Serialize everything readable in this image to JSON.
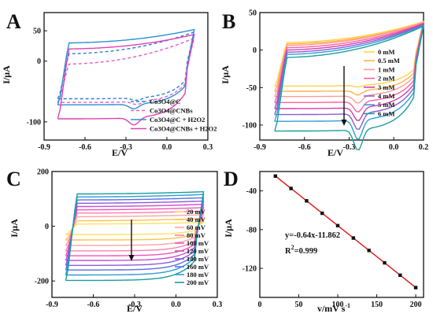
{
  "chart_data": [
    {
      "panel": "A",
      "type": "line",
      "xlabel": "E/V",
      "ylabel": "I/μA",
      "xlim": [
        -0.9,
        0.3
      ],
      "ylim": [
        -130,
        80
      ],
      "xticks": [
        "-0.9",
        "-0.6",
        "-0.3",
        "0.0",
        "0.3"
      ],
      "yticks": [
        "-100",
        "0",
        "50"
      ],
      "xtick_values": [
        -0.9,
        -0.6,
        -0.3,
        0.0,
        0.3
      ],
      "ytick_values": [
        -100,
        0,
        50
      ],
      "legend_position": "bottom-right",
      "series": [
        {
          "name": "Co3O4@C",
          "color": "#2e7fd0",
          "dash": true,
          "cv": {
            "e1": -0.8,
            "e2": 0.2,
            "topStart": 12,
            "topEnd": 48,
            "botStart": -62,
            "botEnd": -10,
            "peakE": -0.22,
            "peakI": -4,
            "peakW": 0.05
          }
        },
        {
          "name": "Co3O4@CNBs",
          "color": "#e85ac8",
          "dash": true,
          "cv": {
            "e1": -0.8,
            "e2": 0.2,
            "topStart": -5,
            "topEnd": 38,
            "botStart": -68,
            "botEnd": -15,
            "peakE": -0.22,
            "peakI": -5,
            "peakW": 0.05
          }
        },
        {
          "name": "Co3O4@C + H2O2",
          "color": "#2a8fd6",
          "dash": false,
          "cv": {
            "e1": -0.8,
            "e2": 0.2,
            "topStart": 30,
            "topEnd": 52,
            "botStart": -72,
            "botEnd": -18,
            "peakE": -0.24,
            "peakI": -8,
            "peakW": 0.05
          }
        },
        {
          "name": "Co3O4@CNBs + H2O2",
          "color": "#e041b4",
          "dash": false,
          "cv": {
            "e1": -0.8,
            "e2": 0.2,
            "topStart": 20,
            "topEnd": 44,
            "botStart": -95,
            "botEnd": -22,
            "peakE": -0.24,
            "peakI": -12,
            "peakW": 0.05
          }
        }
      ]
    },
    {
      "panel": "B",
      "type": "line",
      "xlabel": "E/V",
      "ylabel": "I/μA",
      "xlim": [
        -0.9,
        0.2
      ],
      "ylim": [
        -120,
        50
      ],
      "xticks": [
        "-0.9",
        "-0.6",
        "-0.3",
        "0.0",
        "0.2"
      ],
      "yticks": [
        "50",
        "0",
        "-50",
        "-100"
      ],
      "xtick_values": [
        -0.9,
        -0.6,
        -0.3,
        0.0,
        0.2
      ],
      "ytick_values": [
        50,
        0,
        -50,
        -100
      ],
      "legend_position": "right",
      "series": [
        {
          "name": "0 mM",
          "color": "#ffd24d",
          "cv": {
            "e1": -0.8,
            "e2": 0.2,
            "topStart": 10,
            "topEnd": 38,
            "botStart": -48,
            "botEnd": -10,
            "peakE": -0.24,
            "peakI": -2,
            "peakW": 0.04
          }
        },
        {
          "name": "0.5 mM",
          "color": "#ffb347",
          "cv": {
            "e1": -0.8,
            "e2": 0.2,
            "topStart": 8,
            "topEnd": 37,
            "botStart": -55,
            "botEnd": -13,
            "peakE": -0.24,
            "peakI": -6,
            "peakW": 0.04
          }
        },
        {
          "name": "1 mM",
          "color": "#ff9a9a",
          "cv": {
            "e1": -0.8,
            "e2": 0.2,
            "topStart": 6,
            "topEnd": 37,
            "botStart": -62,
            "botEnd": -16,
            "peakE": -0.24,
            "peakI": -10,
            "peakW": 0.04
          }
        },
        {
          "name": "2 mM",
          "color": "#ff5fa2",
          "cv": {
            "e1": -0.8,
            "e2": 0.2,
            "topStart": 3,
            "topEnd": 36,
            "botStart": -70,
            "botEnd": -19,
            "peakE": -0.24,
            "peakI": -14,
            "peakW": 0.04
          }
        },
        {
          "name": "3 mM",
          "color": "#d43fa8",
          "cv": {
            "e1": -0.8,
            "e2": 0.2,
            "topStart": 0,
            "topEnd": 35,
            "botStart": -78,
            "botEnd": -22,
            "peakE": -0.24,
            "peakI": -18,
            "peakW": 0.04
          }
        },
        {
          "name": "4 mM",
          "color": "#8a5cd6",
          "cv": {
            "e1": -0.8,
            "e2": 0.2,
            "topStart": -3,
            "topEnd": 34,
            "botStart": -86,
            "botEnd": -25,
            "peakE": -0.24,
            "peakI": -22,
            "peakW": 0.04
          }
        },
        {
          "name": "5 mM",
          "color": "#2f9fd6",
          "cv": {
            "e1": -0.8,
            "e2": 0.2,
            "topStart": -6,
            "topEnd": 33,
            "botStart": -95,
            "botEnd": -28,
            "peakE": -0.24,
            "peakI": -26,
            "peakW": 0.04
          }
        },
        {
          "name": "6 mM",
          "color": "#1e9e9e",
          "cv": {
            "e1": -0.8,
            "e2": 0.2,
            "topStart": -10,
            "topEnd": 32,
            "botStart": -108,
            "botEnd": -30,
            "peakE": -0.24,
            "peakI": -28,
            "peakW": 0.04
          }
        }
      ]
    },
    {
      "panel": "C",
      "type": "line",
      "xlabel": "E/V",
      "ylabel": "I/μA",
      "xlim": [
        -0.9,
        0.3
      ],
      "ylim": [
        -260,
        200
      ],
      "xticks": [
        "-0.9",
        "-0.6",
        "-0.3",
        "0.0",
        "0.3"
      ],
      "yticks": [
        "200",
        "0",
        "-200"
      ],
      "xtick_values": [
        -0.9,
        -0.6,
        -0.3,
        0.0,
        0.3
      ],
      "ytick_values": [
        200,
        0,
        -200
      ],
      "legend_position": "right",
      "series": [
        {
          "name": "20 mV",
          "color": "#ffe066",
          "cv": {
            "e1": -0.8,
            "e2": 0.2,
            "topStart": 8,
            "topEnd": 14,
            "botStart": -30,
            "botEnd": -5,
            "peakE": -0.25,
            "peakI": 0,
            "peakW": 0.05
          }
        },
        {
          "name": "40 mV",
          "color": "#ffc24d",
          "cv": {
            "e1": -0.8,
            "e2": 0.2,
            "topStart": 20,
            "topEnd": 28,
            "botStart": -50,
            "botEnd": -12,
            "peakE": -0.25,
            "peakI": 0,
            "peakW": 0.05
          }
        },
        {
          "name": "60 mV",
          "color": "#ffa3a3",
          "cv": {
            "e1": -0.8,
            "e2": 0.2,
            "topStart": 35,
            "topEnd": 42,
            "botStart": -70,
            "botEnd": -20,
            "peakE": -0.25,
            "peakI": 0,
            "peakW": 0.05
          }
        },
        {
          "name": "80 mV",
          "color": "#ff7fae",
          "cv": {
            "e1": -0.8,
            "e2": 0.2,
            "topStart": 48,
            "topEnd": 55,
            "botStart": -90,
            "botEnd": -28,
            "peakE": -0.25,
            "peakI": 0,
            "peakW": 0.05
          }
        },
        {
          "name": "100 mV",
          "color": "#f056b8",
          "cv": {
            "e1": -0.8,
            "e2": 0.2,
            "topStart": 60,
            "topEnd": 68,
            "botStart": -108,
            "botEnd": -36,
            "peakE": -0.25,
            "peakI": 0,
            "peakW": 0.05
          }
        },
        {
          "name": "120 mV",
          "color": "#c84fd0",
          "cv": {
            "e1": -0.8,
            "e2": 0.2,
            "topStart": 72,
            "topEnd": 80,
            "botStart": -125,
            "botEnd": -44,
            "peakE": -0.25,
            "peakI": 0,
            "peakW": 0.05
          }
        },
        {
          "name": "140 mV",
          "color": "#8c5bd8",
          "cv": {
            "e1": -0.8,
            "e2": 0.2,
            "topStart": 84,
            "topEnd": 92,
            "botStart": -143,
            "botEnd": -52,
            "peakE": -0.25,
            "peakI": 0,
            "peakW": 0.05
          }
        },
        {
          "name": "160 mV",
          "color": "#5a6fe0",
          "cv": {
            "e1": -0.8,
            "e2": 0.2,
            "topStart": 96,
            "topEnd": 104,
            "botStart": -160,
            "botEnd": -60,
            "peakE": -0.25,
            "peakI": 0,
            "peakW": 0.05
          }
        },
        {
          "name": "180 mV",
          "color": "#2e9ad6",
          "cv": {
            "e1": -0.8,
            "e2": 0.2,
            "topStart": 107,
            "topEnd": 116,
            "botStart": -178,
            "botEnd": -68,
            "peakE": -0.25,
            "peakI": 0,
            "peakW": 0.05
          }
        },
        {
          "name": "200 mV",
          "color": "#159f9a",
          "cv": {
            "e1": -0.8,
            "e2": 0.2,
            "topStart": 118,
            "topEnd": 126,
            "botStart": -198,
            "botEnd": -76,
            "peakE": -0.25,
            "peakI": 0,
            "peakW": 0.05
          }
        }
      ]
    },
    {
      "panel": "D",
      "type": "scatter",
      "xlabel": "v/mV s",
      "xlabel_sup": "-1",
      "ylabel": "I/μA",
      "xlim": [
        0,
        210
      ],
      "ylim": [
        -150,
        -20
      ],
      "xticks": [
        "0",
        "50",
        "100",
        "150",
        "200"
      ],
      "yticks": [
        "-40",
        "-80",
        "-120"
      ],
      "xtick_values": [
        0,
        50,
        100,
        150,
        200
      ],
      "ytick_values": [
        -40,
        -80,
        -120
      ],
      "x": [
        20,
        40,
        60,
        80,
        100,
        120,
        140,
        160,
        180,
        200
      ],
      "y": [
        -24.7,
        -37.5,
        -50.3,
        -63.1,
        -75.9,
        -88.7,
        -101.5,
        -114.3,
        -127.1,
        -139.9
      ],
      "point_color": "#111111",
      "fit_color": "#e02020",
      "fit": {
        "slope": -0.64,
        "intercept": -11.862
      },
      "equation": "y=-0.64x-11.862",
      "r2_label": "R",
      "r2_sup": "2",
      "r2_value": "=0.999"
    }
  ],
  "panel_letters": [
    "A",
    "B",
    "C",
    "D"
  ],
  "arrow_color": "#111111"
}
